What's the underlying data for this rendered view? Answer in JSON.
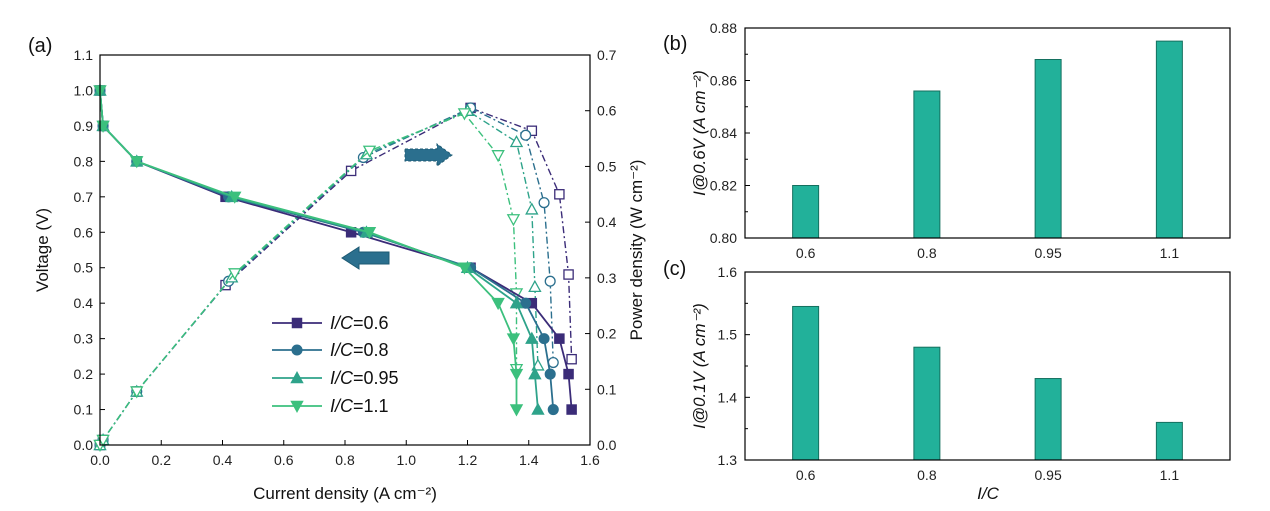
{
  "colors": {
    "series": [
      "#3b2c78",
      "#2b6f8e",
      "#2ea38a",
      "#3cc07d"
    ],
    "bar_fill": "#22b19a",
    "bar_edge": "#14705f",
    "axis": "#000000"
  },
  "chart_data": [
    {
      "panel_label": "(a)",
      "type": "line",
      "xlabel": "Current density (A cm⁻²)",
      "ylabel": "Voltage (V)",
      "y2label": "Power density (W cm⁻²)",
      "xlim": [
        0,
        1.6
      ],
      "ylim": [
        0,
        1.1
      ],
      "y2lim": [
        0,
        0.7
      ],
      "xticks": [
        "0.0",
        "0.2",
        "0.4",
        "0.6",
        "0.8",
        "1.0",
        "1.2",
        "1.4",
        "1.6"
      ],
      "yticks": [
        "0.0",
        "0.1",
        "0.2",
        "0.3",
        "0.4",
        "0.5",
        "0.6",
        "0.7",
        "0.8",
        "0.9",
        "1.0",
        "1.1"
      ],
      "y2ticks": [
        "0.0",
        "0.1",
        "0.2",
        "0.3",
        "0.4",
        "0.5",
        "0.6",
        "0.7"
      ],
      "legend_position": "bottom-center",
      "series": [
        {
          "name": "I/C=0.6",
          "legend_italic": "I/C",
          "legend_value": "=0.6",
          "marker": "square",
          "voltage_x": [
            0,
            0.01,
            0.12,
            0.41,
            0.82,
            1.21,
            1.41,
            1.5,
            1.53,
            1.54
          ],
          "voltage_y": [
            1.0,
            0.9,
            0.8,
            0.7,
            0.6,
            0.5,
            0.4,
            0.3,
            0.2,
            0.1
          ],
          "power_x": [
            0,
            0.01,
            0.12,
            0.41,
            0.82,
            1.21,
            1.41,
            1.5,
            1.53,
            1.54
          ],
          "power_y": [
            0.0,
            0.009,
            0.096,
            0.287,
            0.492,
            0.605,
            0.564,
            0.45,
            0.306,
            0.154
          ]
        },
        {
          "name": "I/C=0.8",
          "legend_italic": "I/C",
          "legend_value": "=0.8",
          "marker": "circle",
          "voltage_x": [
            0,
            0.01,
            0.12,
            0.42,
            0.86,
            1.21,
            1.39,
            1.45,
            1.47,
            1.48
          ],
          "voltage_y": [
            1.0,
            0.9,
            0.8,
            0.7,
            0.6,
            0.5,
            0.4,
            0.3,
            0.2,
            0.1
          ],
          "power_x": [
            0,
            0.01,
            0.12,
            0.42,
            0.86,
            1.21,
            1.39,
            1.45,
            1.47,
            1.48
          ],
          "power_y": [
            0.0,
            0.009,
            0.096,
            0.294,
            0.516,
            0.605,
            0.556,
            0.435,
            0.294,
            0.148
          ]
        },
        {
          "name": "I/C=0.95",
          "legend_italic": "I/C",
          "legend_value": "=0.95",
          "marker": "triangle-up",
          "voltage_x": [
            0,
            0.01,
            0.12,
            0.43,
            0.87,
            1.2,
            1.36,
            1.41,
            1.42,
            1.43
          ],
          "voltage_y": [
            1.0,
            0.9,
            0.8,
            0.7,
            0.6,
            0.5,
            0.4,
            0.3,
            0.2,
            0.1
          ],
          "power_x": [
            0,
            0.01,
            0.12,
            0.43,
            0.87,
            1.2,
            1.36,
            1.41,
            1.42,
            1.43
          ],
          "power_y": [
            0.0,
            0.009,
            0.096,
            0.301,
            0.522,
            0.6,
            0.544,
            0.423,
            0.284,
            0.143
          ]
        },
        {
          "name": "I/C=1.1",
          "legend_italic": "I/C",
          "legend_value": "=1.1",
          "marker": "triangle-down",
          "voltage_x": [
            0,
            0.01,
            0.12,
            0.44,
            0.88,
            1.19,
            1.3,
            1.35,
            1.36,
            1.36
          ],
          "voltage_y": [
            1.0,
            0.9,
            0.8,
            0.7,
            0.6,
            0.5,
            0.4,
            0.3,
            0.2,
            0.1
          ],
          "power_x": [
            0,
            0.01,
            0.12,
            0.44,
            0.88,
            1.19,
            1.3,
            1.35,
            1.36,
            1.36
          ],
          "power_y": [
            0.0,
            0.009,
            0.096,
            0.308,
            0.528,
            0.595,
            0.52,
            0.405,
            0.272,
            0.136
          ]
        }
      ]
    },
    {
      "panel_label": "(b)",
      "type": "bar",
      "categories": [
        "0.6",
        "0.8",
        "0.95",
        "1.1"
      ],
      "values": [
        0.82,
        0.856,
        0.868,
        0.875
      ],
      "ylabel": "I@0.6V (A cm⁻²)",
      "ylim": [
        0.8,
        0.88
      ],
      "yticks": [
        "0.80",
        "0.82",
        "0.84",
        "0.86",
        "0.88"
      ]
    },
    {
      "panel_label": "(c)",
      "type": "bar",
      "categories": [
        "0.6",
        "0.8",
        "0.95",
        "1.1"
      ],
      "values": [
        1.545,
        1.48,
        1.43,
        1.36
      ],
      "ylabel": "I@0.1V (A cm⁻²)",
      "xlabel": "I/C",
      "ylim": [
        1.3,
        1.6
      ],
      "yticks": [
        "1.3",
        "1.4",
        "1.5",
        "1.6"
      ]
    }
  ]
}
